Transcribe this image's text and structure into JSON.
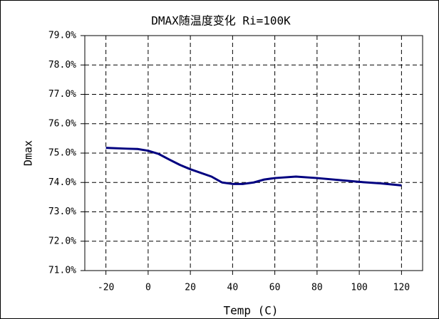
{
  "chart_data": {
    "type": "line",
    "title": "DMAX随温度变化 Ri=100K",
    "x_label": "Temp (C)",
    "y_label": "Dmax",
    "x": [
      -20,
      -10,
      -5,
      0,
      5,
      10,
      15,
      20,
      30,
      35,
      40,
      45,
      50,
      55,
      60,
      70,
      80,
      100,
      110,
      120
    ],
    "series": [
      {
        "name": "Dmax",
        "color": "#000080",
        "values": [
          75.18,
          75.15,
          75.14,
          75.08,
          74.97,
          74.78,
          74.6,
          74.45,
          74.2,
          74.0,
          73.95,
          73.95,
          74.0,
          74.1,
          74.15,
          74.2,
          74.15,
          74.02,
          73.97,
          73.9
        ]
      }
    ],
    "xlim": [
      -30,
      130
    ],
    "xticks": [
      -20,
      0,
      20,
      40,
      60,
      80,
      100,
      120
    ],
    "ylim": [
      71,
      79
    ],
    "yticks": [
      {
        "value": 71,
        "label": "71.0%"
      },
      {
        "value": 72,
        "label": "72.0%"
      },
      {
        "value": 73,
        "label": "73.0%"
      },
      {
        "value": 74,
        "label": "74.0%"
      },
      {
        "value": 75,
        "label": "75.0%"
      },
      {
        "value": 76,
        "label": "76.0%"
      },
      {
        "value": 77,
        "label": "77.0%"
      },
      {
        "value": 78,
        "label": "78.0%"
      },
      {
        "value": 79,
        "label": "79.0%"
      }
    ],
    "grid": true
  }
}
